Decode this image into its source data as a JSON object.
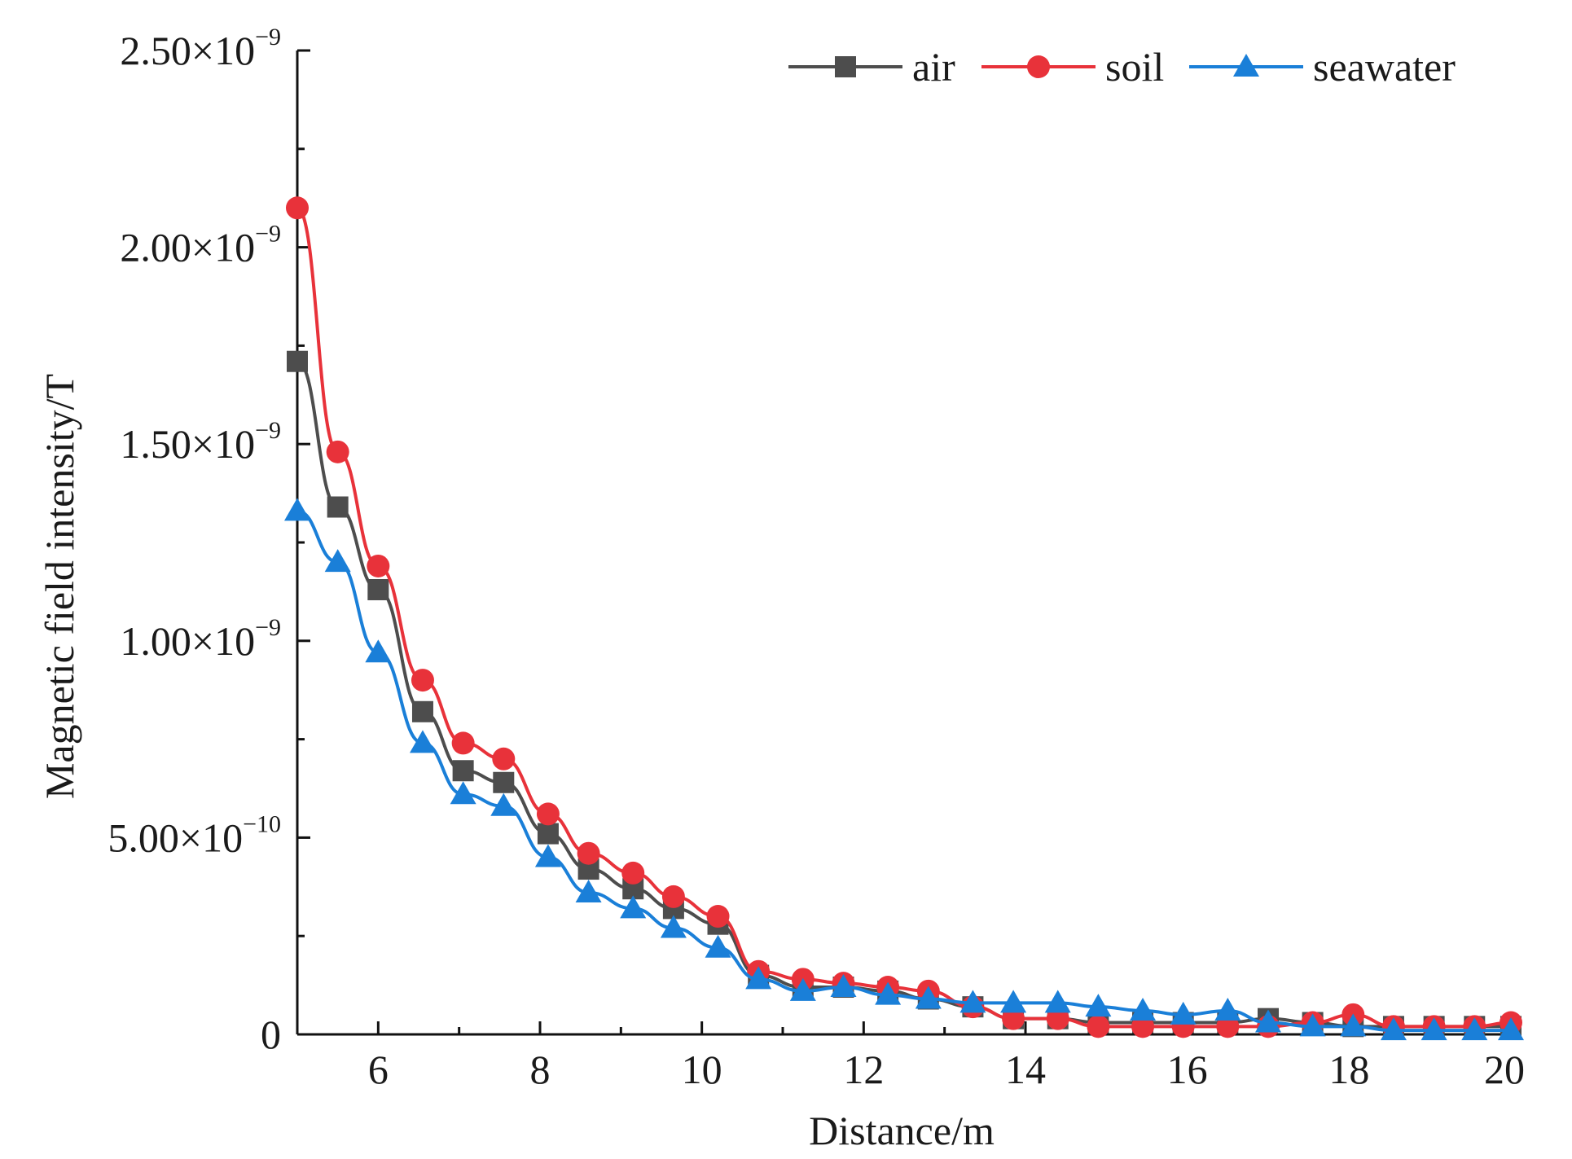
{
  "chart_data": {
    "type": "line",
    "title": "",
    "xlabel": "Distance/m",
    "ylabel": "Magnetic field intensity/T",
    "xlim": [
      5,
      20
    ],
    "ylim": [
      0,
      2.5e-09
    ],
    "grid": false,
    "legend_position": "top-right",
    "x_ticks": [
      {
        "value": 6,
        "label": "6"
      },
      {
        "value": 8,
        "label": "8"
      },
      {
        "value": 10,
        "label": "10"
      },
      {
        "value": 12,
        "label": "12"
      },
      {
        "value": 14,
        "label": "14"
      },
      {
        "value": 16,
        "label": "16"
      },
      {
        "value": 18,
        "label": "18"
      },
      {
        "value": 20,
        "label": "20"
      }
    ],
    "y_ticks": [
      {
        "value": 0,
        "mantissa": "0",
        "exponent": ""
      },
      {
        "value": 5e-10,
        "mantissa": "5.00×10",
        "exponent": "−10"
      },
      {
        "value": 1e-09,
        "mantissa": "1.00×10",
        "exponent": "−9"
      },
      {
        "value": 1.5e-09,
        "mantissa": "1.50×10",
        "exponent": "−9"
      },
      {
        "value": 2e-09,
        "mantissa": "2.00×10",
        "exponent": "−9"
      },
      {
        "value": 2.5e-09,
        "mantissa": "2.50×10",
        "exponent": "−9"
      }
    ],
    "series": [
      {
        "name": "air",
        "color": "#4d4d4d",
        "marker": "square",
        "x": [
          5.0,
          5.5,
          6.0,
          6.55,
          7.05,
          7.55,
          8.1,
          8.6,
          9.15,
          9.65,
          10.2,
          10.7,
          11.25,
          11.75,
          12.3,
          12.8,
          13.35,
          13.85,
          14.4,
          14.9,
          15.45,
          15.95,
          16.5,
          17.0,
          17.55,
          18.05,
          18.55,
          19.05,
          19.55,
          20.0
        ],
        "y": [
          1.71e-09,
          1.34e-09,
          1.13e-09,
          8.2e-10,
          6.7e-10,
          6.4e-10,
          5.1e-10,
          4.2e-10,
          3.7e-10,
          3.2e-10,
          2.8e-10,
          1.5e-10,
          1.2e-10,
          1.2e-10,
          1.1e-10,
          9e-11,
          7e-11,
          4e-11,
          4e-11,
          3e-11,
          3e-11,
          3e-11,
          3e-11,
          4e-11,
          3e-11,
          2e-11,
          2e-11,
          2e-11,
          2e-11,
          2e-11
        ]
      },
      {
        "name": "soil",
        "color": "#e8323a",
        "marker": "circle",
        "x": [
          5.0,
          5.5,
          6.0,
          6.55,
          7.05,
          7.55,
          8.1,
          8.6,
          9.15,
          9.65,
          10.2,
          10.7,
          11.25,
          11.75,
          12.3,
          12.8,
          13.35,
          13.85,
          14.4,
          14.9,
          15.45,
          15.95,
          16.5,
          17.0,
          17.55,
          18.05,
          18.55,
          19.05,
          19.55,
          20.0
        ],
        "y": [
          2.1e-09,
          1.48e-09,
          1.19e-09,
          9e-10,
          7.4e-10,
          7e-10,
          5.6e-10,
          4.6e-10,
          4.1e-10,
          3.5e-10,
          3e-10,
          1.6e-10,
          1.4e-10,
          1.3e-10,
          1.2e-10,
          1.1e-10,
          7e-11,
          4e-11,
          4e-11,
          2e-11,
          2e-11,
          2e-11,
          2e-11,
          2e-11,
          3e-11,
          5e-11,
          2e-11,
          2e-11,
          2e-11,
          3e-11
        ]
      },
      {
        "name": "seawater",
        "color": "#1a7fd8",
        "marker": "triangle",
        "x": [
          5.0,
          5.5,
          6.0,
          6.55,
          7.05,
          7.55,
          8.1,
          8.6,
          9.15,
          9.65,
          10.2,
          10.7,
          11.25,
          11.75,
          12.3,
          12.8,
          13.35,
          13.85,
          14.4,
          14.9,
          15.45,
          15.95,
          16.5,
          17.0,
          17.55,
          18.05,
          18.55,
          19.05,
          19.55,
          20.0
        ],
        "y": [
          1.33e-09,
          1.2e-09,
          9.7e-10,
          7.4e-10,
          6.1e-10,
          5.8e-10,
          4.5e-10,
          3.6e-10,
          3.2e-10,
          2.7e-10,
          2.2e-10,
          1.4e-10,
          1.1e-10,
          1.2e-10,
          1e-10,
          9e-11,
          8e-11,
          8e-11,
          8e-11,
          7e-11,
          6e-11,
          5e-11,
          6e-11,
          3e-11,
          2e-11,
          2e-11,
          1e-11,
          1e-11,
          1e-11,
          1e-11
        ]
      }
    ]
  }
}
